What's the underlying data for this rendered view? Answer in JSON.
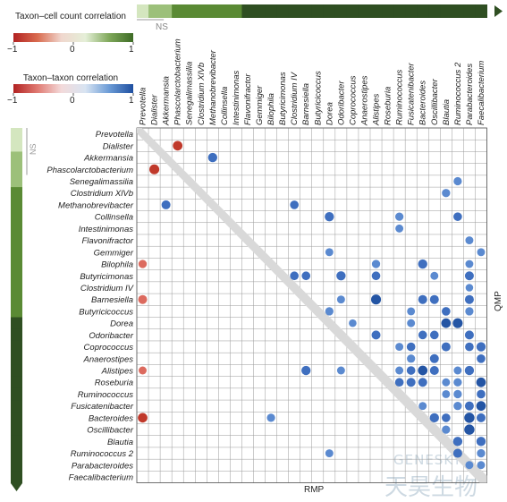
{
  "legends": {
    "cell_count": {
      "title": "Taxon–cell count correlation",
      "min_label": "−1",
      "mid_label": "0",
      "max_label": "1",
      "colors": [
        "#b22222",
        "#d96b4f",
        "#f0d7ce",
        "#e5efd8",
        "#7fa85a",
        "#3d6b25"
      ]
    },
    "taxon_taxon": {
      "title": "Taxon–taxon correlation",
      "min_label": "−1",
      "mid_label": "0",
      "max_label": "1",
      "colors": [
        "#b22222",
        "#e07a72",
        "#f3dada",
        "#d8e4f2",
        "#6b9bd6",
        "#1f4fa0"
      ]
    }
  },
  "ns_label": "NS",
  "rmp_label": "RMP",
  "qmp_label": "QMP",
  "watermark": {
    "latin": "GENESKY",
    "cjk": "天昊生物"
  },
  "chart_data": {
    "type": "heatmap",
    "description_note": "",
    "taxa": [
      "Prevotella",
      "Dialister",
      "Akkermansia",
      "Phascolarctobacterium",
      "Senegalimassilia",
      "Clostridium XlVb",
      "Methanobrevibacter",
      "Collinsella",
      "Intestinimonas",
      "Flavonifractor",
      "Gemmiger",
      "Bilophila",
      "Butyricimonas",
      "Clostridium IV",
      "Barnesiella",
      "Butyricicoccus",
      "Dorea",
      "Odoribacter",
      "Coprococcus",
      "Anaerostipes",
      "Alistipes",
      "Roseburia",
      "Ruminococcus",
      "Fusicatenibacter",
      "Bacteroides",
      "Oscillibacter",
      "Blautia",
      "Ruminococcus 2",
      "Parabacteroides",
      "Faecalibacterium"
    ],
    "column_bar_colors": [
      "#d4e6bf",
      "#9cc07a",
      "#9cc07a",
      "#5a8a34",
      "#5a8a34",
      "#5a8a34",
      "#5a8a34",
      "#5a8a34",
      "#5a8a34",
      "#2f4f22",
      "#2f4f22",
      "#2f4f22",
      "#2f4f22",
      "#2f4f22",
      "#2f4f22",
      "#2f4f22",
      "#2f4f22",
      "#2f4f22",
      "#2f4f22",
      "#2f4f22",
      "#2f4f22",
      "#2f4f22",
      "#2f4f22",
      "#2f4f22",
      "#2f4f22",
      "#2f4f22",
      "#2f4f22",
      "#2f4f22",
      "#2f4f22",
      "#2f4f22"
    ],
    "row_bar_colors": [
      "#d4e6bf",
      "#d4e6bf",
      "#9cc07a",
      "#9cc07a",
      "#9cc07a",
      "#5a8a34",
      "#5a8a34",
      "#5a8a34",
      "#5a8a34",
      "#5a8a34",
      "#5a8a34",
      "#5a8a34",
      "#5a8a34",
      "#5a8a34",
      "#5a8a34",
      "#5a8a34",
      "#2f4f22",
      "#2f4f22",
      "#2f4f22",
      "#2f4f22",
      "#2f4f22",
      "#2f4f22",
      "#2f4f22",
      "#2f4f22",
      "#2f4f22",
      "#2f4f22",
      "#2f4f22",
      "#2f4f22",
      "#2f4f22",
      "#2f4f22"
    ],
    "dots": [
      {
        "row": 1,
        "col": 3,
        "value": -0.6
      },
      {
        "row": 2,
        "col": 6,
        "value": 0.55
      },
      {
        "row": 3,
        "col": 1,
        "value": -0.65
      },
      {
        "row": 4,
        "col": 27,
        "value": 0.4
      },
      {
        "row": 5,
        "col": 26,
        "value": 0.4
      },
      {
        "row": 6,
        "col": 2,
        "value": 0.5
      },
      {
        "row": 6,
        "col": 13,
        "value": 0.45
      },
      {
        "row": 7,
        "col": 16,
        "value": 0.55
      },
      {
        "row": 7,
        "col": 22,
        "value": 0.4
      },
      {
        "row": 7,
        "col": 27,
        "value": 0.45
      },
      {
        "row": 8,
        "col": 22,
        "value": 0.35
      },
      {
        "row": 9,
        "col": 28,
        "value": 0.35
      },
      {
        "row": 10,
        "col": 16,
        "value": 0.35
      },
      {
        "row": 10,
        "col": 29,
        "value": 0.35
      },
      {
        "row": 11,
        "col": 0,
        "value": -0.4
      },
      {
        "row": 11,
        "col": 20,
        "value": 0.4
      },
      {
        "row": 11,
        "col": 24,
        "value": 0.55
      },
      {
        "row": 11,
        "col": 28,
        "value": 0.35
      },
      {
        "row": 12,
        "col": 13,
        "value": 0.45
      },
      {
        "row": 12,
        "col": 14,
        "value": 0.45
      },
      {
        "row": 12,
        "col": 17,
        "value": 0.55
      },
      {
        "row": 12,
        "col": 20,
        "value": 0.45
      },
      {
        "row": 12,
        "col": 25,
        "value": 0.35
      },
      {
        "row": 12,
        "col": 28,
        "value": 0.5
      },
      {
        "row": 13,
        "col": 28,
        "value": 0.3
      },
      {
        "row": 14,
        "col": 0,
        "value": -0.5
      },
      {
        "row": 14,
        "col": 17,
        "value": 0.35
      },
      {
        "row": 14,
        "col": 20,
        "value": 0.65
      },
      {
        "row": 14,
        "col": 24,
        "value": 0.5
      },
      {
        "row": 14,
        "col": 25,
        "value": 0.5
      },
      {
        "row": 14,
        "col": 28,
        "value": 0.5
      },
      {
        "row": 15,
        "col": 16,
        "value": 0.4
      },
      {
        "row": 15,
        "col": 23,
        "value": 0.35
      },
      {
        "row": 15,
        "col": 26,
        "value": 0.45
      },
      {
        "row": 15,
        "col": 28,
        "value": 0.4
      },
      {
        "row": 16,
        "col": 18,
        "value": 0.3
      },
      {
        "row": 16,
        "col": 23,
        "value": 0.35
      },
      {
        "row": 16,
        "col": 26,
        "value": 0.6
      },
      {
        "row": 16,
        "col": 27,
        "value": 0.65
      },
      {
        "row": 17,
        "col": 20,
        "value": 0.5
      },
      {
        "row": 17,
        "col": 24,
        "value": 0.45
      },
      {
        "row": 17,
        "col": 25,
        "value": 0.45
      },
      {
        "row": 17,
        "col": 28,
        "value": 0.5
      },
      {
        "row": 18,
        "col": 22,
        "value": 0.35
      },
      {
        "row": 18,
        "col": 23,
        "value": 0.45
      },
      {
        "row": 18,
        "col": 26,
        "value": 0.5
      },
      {
        "row": 18,
        "col": 28,
        "value": 0.45
      },
      {
        "row": 18,
        "col": 29,
        "value": 0.55
      },
      {
        "row": 19,
        "col": 23,
        "value": 0.4
      },
      {
        "row": 19,
        "col": 25,
        "value": 0.5
      },
      {
        "row": 19,
        "col": 29,
        "value": 0.45
      },
      {
        "row": 20,
        "col": 0,
        "value": -0.35
      },
      {
        "row": 20,
        "col": 14,
        "value": 0.55
      },
      {
        "row": 20,
        "col": 17,
        "value": 0.35
      },
      {
        "row": 20,
        "col": 22,
        "value": 0.35
      },
      {
        "row": 20,
        "col": 23,
        "value": 0.45
      },
      {
        "row": 20,
        "col": 24,
        "value": 0.6
      },
      {
        "row": 20,
        "col": 25,
        "value": 0.5
      },
      {
        "row": 20,
        "col": 27,
        "value": 0.35
      },
      {
        "row": 20,
        "col": 28,
        "value": 0.55
      },
      {
        "row": 21,
        "col": 22,
        "value": 0.45
      },
      {
        "row": 21,
        "col": 23,
        "value": 0.5
      },
      {
        "row": 21,
        "col": 24,
        "value": 0.5
      },
      {
        "row": 21,
        "col": 26,
        "value": 0.35
      },
      {
        "row": 21,
        "col": 27,
        "value": 0.4
      },
      {
        "row": 21,
        "col": 29,
        "value": 0.6
      },
      {
        "row": 22,
        "col": 26,
        "value": 0.35
      },
      {
        "row": 22,
        "col": 27,
        "value": 0.4
      },
      {
        "row": 22,
        "col": 29,
        "value": 0.45
      },
      {
        "row": 23,
        "col": 24,
        "value": 0.35
      },
      {
        "row": 23,
        "col": 27,
        "value": 0.4
      },
      {
        "row": 23,
        "col": 28,
        "value": 0.5
      },
      {
        "row": 23,
        "col": 29,
        "value": 0.6
      },
      {
        "row": 24,
        "col": 0,
        "value": -0.6
      },
      {
        "row": 24,
        "col": 11,
        "value": 0.4
      },
      {
        "row": 24,
        "col": 25,
        "value": 0.55
      },
      {
        "row": 24,
        "col": 26,
        "value": 0.45
      },
      {
        "row": 24,
        "col": 28,
        "value": 0.7
      },
      {
        "row": 24,
        "col": 29,
        "value": 0.5
      },
      {
        "row": 25,
        "col": 26,
        "value": 0.4
      },
      {
        "row": 25,
        "col": 28,
        "value": 0.7
      },
      {
        "row": 26,
        "col": 27,
        "value": 0.55
      },
      {
        "row": 26,
        "col": 29,
        "value": 0.55
      },
      {
        "row": 27,
        "col": 16,
        "value": 0.35
      },
      {
        "row": 27,
        "col": 27,
        "value": 0.5
      },
      {
        "row": 27,
        "col": 29,
        "value": 0.4
      },
      {
        "row": 28,
        "col": 28,
        "value": 0.35
      },
      {
        "row": 28,
        "col": 29,
        "value": 0.35
      }
    ]
  }
}
